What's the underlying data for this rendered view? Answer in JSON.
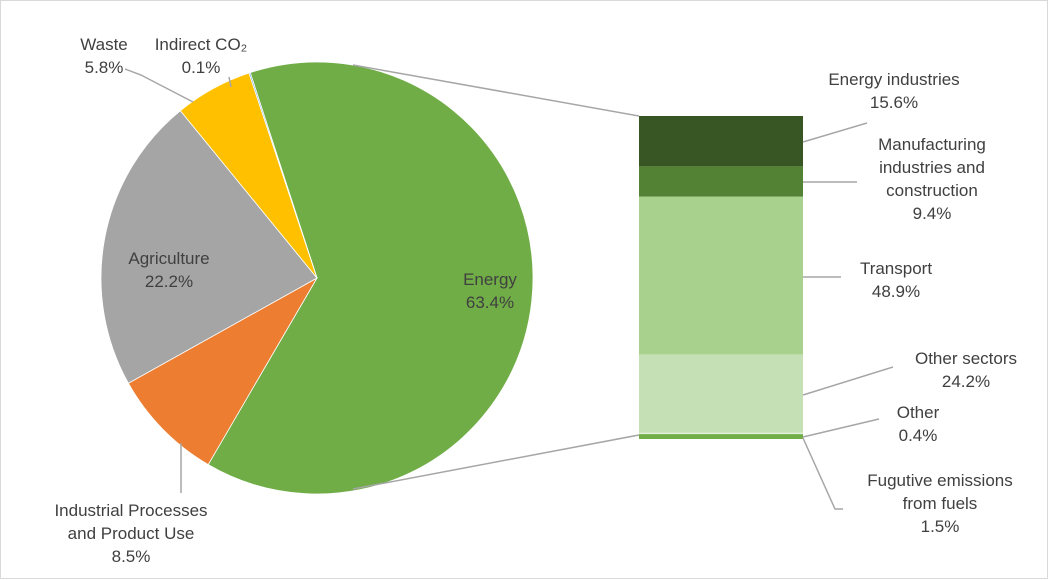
{
  "chart_data": [
    {
      "type": "pie",
      "slices": [
        {
          "name": "Energy",
          "value": 63.4,
          "label": "63.4%",
          "color": "#70ad47"
        },
        {
          "name": "Industrial Processes and Product Use",
          "value": 8.5,
          "label": "8.5%",
          "color": "#ed7d31"
        },
        {
          "name": "Agriculture",
          "value": 22.2,
          "label": "22.2%",
          "color": "#a5a5a5"
        },
        {
          "name": "Waste",
          "value": 5.8,
          "label": "5.8%",
          "color": "#ffc000"
        },
        {
          "name": "Indirect CO₂",
          "value": 0.1,
          "label": "0.1%",
          "color": "#5b9bd5"
        }
      ],
      "label_text": {
        "energy": [
          "Energy",
          "63.4%"
        ],
        "ippu": [
          "Industrial Processes",
          "and Product Use",
          "8.5%"
        ],
        "agriculture": [
          "Agriculture",
          "22.2%"
        ],
        "waste": [
          "Waste",
          "5.8%"
        ],
        "indirect": [
          "Indirect CO₂",
          "0.1%"
        ]
      }
    },
    {
      "type": "bar",
      "stacked": true,
      "segments": [
        {
          "name": "Energy industries",
          "value": 15.6,
          "label": "15.6%",
          "color": "#375623"
        },
        {
          "name": "Manufacturing industries and construction",
          "value": 9.4,
          "label": "9.4%",
          "color": "#548235"
        },
        {
          "name": "Transport",
          "value": 48.9,
          "label": "48.9%",
          "color": "#a9d18e"
        },
        {
          "name": "Other sectors",
          "value": 24.2,
          "label": "24.2%",
          "color": "#c5e0b4"
        },
        {
          "name": "Other",
          "value": 0.4,
          "label": "0.4%",
          "color": "#e2f0d9"
        },
        {
          "name": "Fugutive emissions from fuels",
          "value": 1.5,
          "label": "1.5%",
          "color": "#70ad47"
        }
      ],
      "label_text": {
        "energy_industries": [
          "Energy industries",
          "15.6%"
        ],
        "manufacturing": [
          "Manufacturing",
          "industries and",
          "construction",
          "9.4%"
        ],
        "transport": [
          "Transport",
          "48.9%"
        ],
        "other_sectors": [
          "Other sectors",
          "24.2%"
        ],
        "other": [
          "Other",
          "0.4%"
        ],
        "fugitive": [
          "Fugutive emissions",
          "from fuels",
          "1.5%"
        ]
      }
    }
  ],
  "colors": {
    "leader": "#a6a6a6",
    "connector": "#a6a6a6",
    "text": "#404040",
    "border": "#d9d9d9"
  }
}
